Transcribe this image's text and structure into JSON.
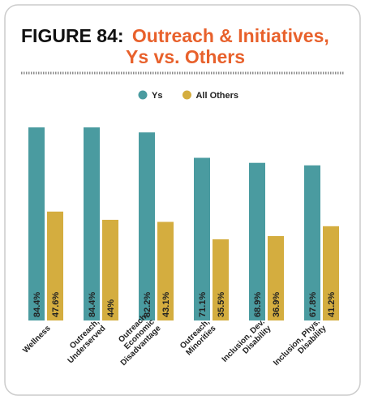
{
  "chart_data": {
    "type": "bar",
    "title_prefix": "FIGURE 84:",
    "title": "Outreach & Initiatives,",
    "title_line2": "Ys vs. Others",
    "categories": [
      "Wellness",
      "Outreach,\nUnderserved",
      "Outreach,\nEconomic\nDisadvantage",
      "Outreach,\nMinorities",
      "Inclusion, Dev.\nDisability",
      "Inclusion, Phys.\nDisability"
    ],
    "series": [
      {
        "name": "Ys",
        "color": "#4a9ba0",
        "values": [
          84.4,
          84.4,
          82.2,
          71.1,
          68.9,
          67.8
        ],
        "value_labels": [
          "84.4%",
          "84.4%",
          "82.2%",
          "71.1%",
          "68.9%",
          "67.8%"
        ]
      },
      {
        "name": "All Others",
        "color": "#d4ad3f",
        "values": [
          47.6,
          44,
          43.1,
          35.5,
          36.9,
          41.2
        ],
        "value_labels": [
          "47.6%",
          "44%",
          "43.1%",
          "35.5%",
          "36.9%",
          "41.2%"
        ]
      }
    ],
    "legend": "top"
  }
}
